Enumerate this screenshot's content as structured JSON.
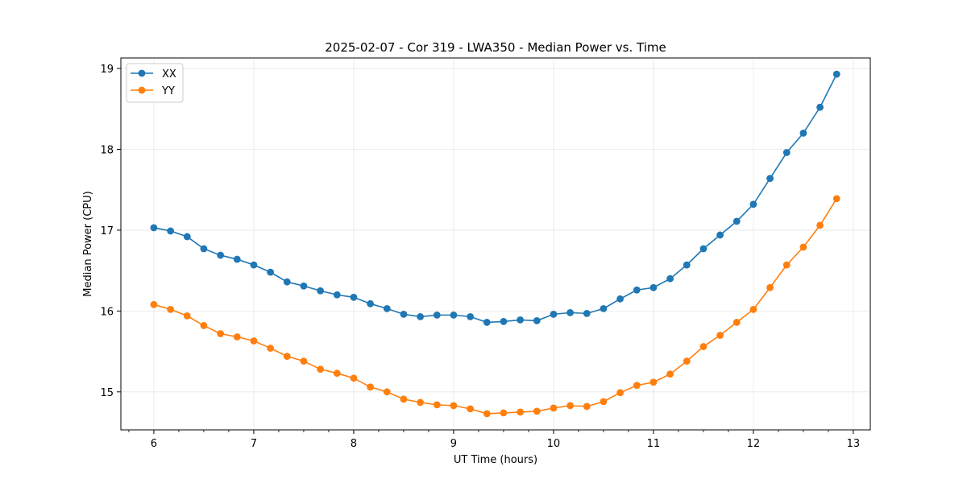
{
  "chart_data": {
    "type": "line",
    "title": "2025-02-07 - Cor 319 - LWA350 - Median Power vs. Time",
    "xlabel": "UT Time (hours)",
    "ylabel": "Median Power (CPU)",
    "xlim": [
      5.67,
      13.17
    ],
    "ylim": [
      14.53,
      19.13
    ],
    "xticks": [
      6,
      7,
      8,
      9,
      10,
      11,
      12,
      13
    ],
    "xminor_step": 0.25,
    "yticks": [
      15,
      16,
      17,
      18,
      19
    ],
    "grid": true,
    "legend_position": "upper-left",
    "x": [
      6.0,
      6.1667,
      6.3333,
      6.5,
      6.6667,
      6.8333,
      7.0,
      7.1667,
      7.3333,
      7.5,
      7.6667,
      7.8333,
      8.0,
      8.1667,
      8.3333,
      8.5,
      8.6667,
      8.8333,
      9.0,
      9.1667,
      9.3333,
      9.5,
      9.6667,
      9.8333,
      10.0,
      10.1667,
      10.3333,
      10.5,
      10.6667,
      10.8333,
      11.0,
      11.1667,
      11.3333,
      11.5,
      11.6667,
      11.8333,
      12.0,
      12.1667,
      12.3333,
      12.5,
      12.6667,
      12.8333
    ],
    "series": [
      {
        "name": "XX",
        "color": "#1f77b4",
        "values": [
          17.03,
          16.99,
          16.92,
          16.77,
          16.69,
          16.64,
          16.57,
          16.48,
          16.36,
          16.31,
          16.25,
          16.2,
          16.17,
          16.09,
          16.03,
          15.96,
          15.93,
          15.95,
          15.95,
          15.93,
          15.86,
          15.87,
          15.89,
          15.88,
          15.96,
          15.98,
          15.97,
          16.03,
          16.15,
          16.26,
          16.29,
          16.4,
          16.57,
          16.77,
          16.94,
          17.11,
          17.32,
          17.64,
          17.96,
          18.2,
          18.52,
          18.93
        ]
      },
      {
        "name": "YY",
        "color": "#ff7f0e",
        "values": [
          16.08,
          16.02,
          15.94,
          15.82,
          15.72,
          15.68,
          15.63,
          15.54,
          15.44,
          15.38,
          15.28,
          15.23,
          15.17,
          15.06,
          15.0,
          14.91,
          14.87,
          14.84,
          14.83,
          14.79,
          14.73,
          14.74,
          14.75,
          14.76,
          14.8,
          14.83,
          14.82,
          14.88,
          14.99,
          15.08,
          15.12,
          15.22,
          15.38,
          15.56,
          15.7,
          15.86,
          16.02,
          16.29,
          16.57,
          16.79,
          17.06,
          17.39
        ]
      }
    ]
  }
}
